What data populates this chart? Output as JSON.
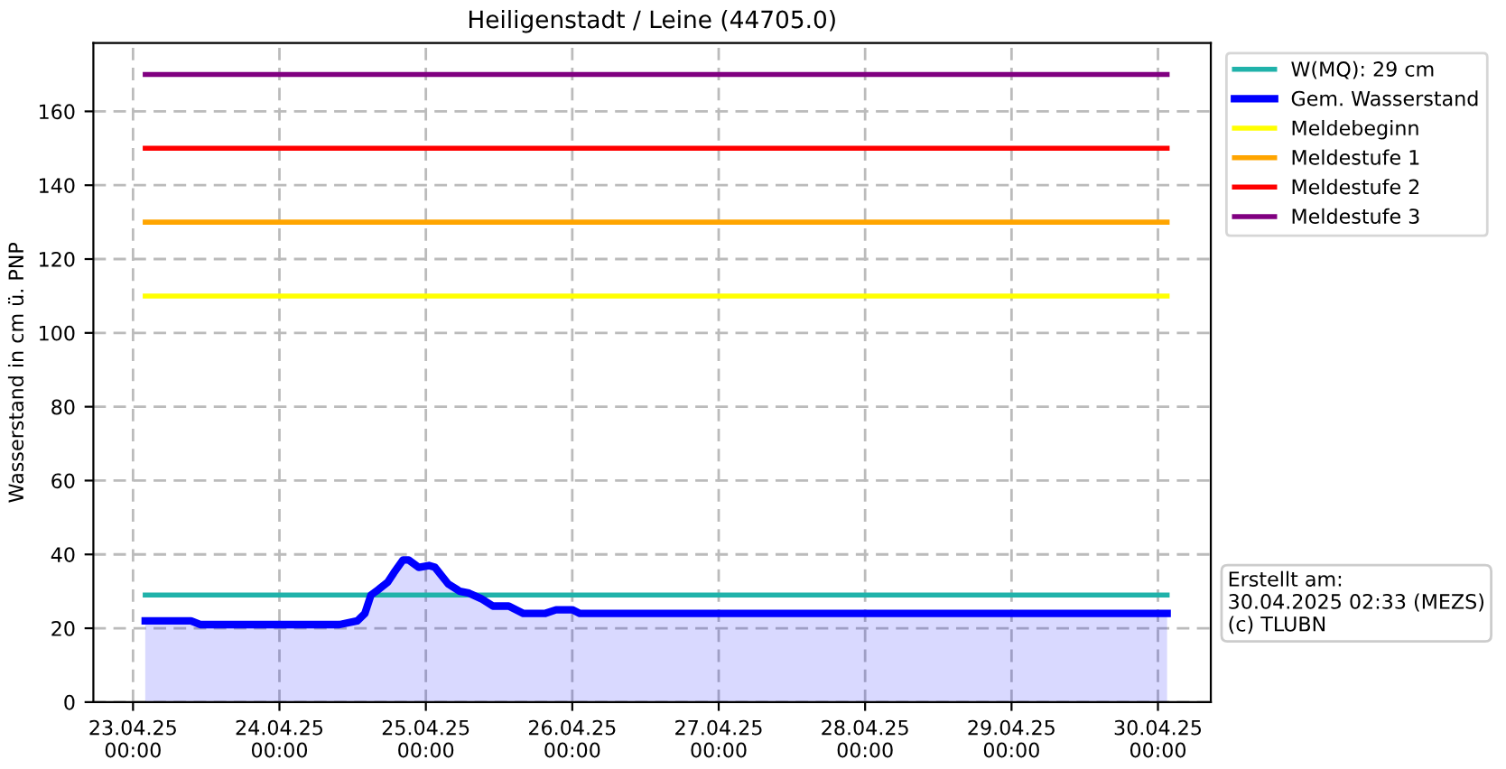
{
  "chart_data": {
    "type": "line",
    "title": "Heiligenstadt / Leine (44705.0)",
    "ylabel": "Wasserstand in cm ü. PNP",
    "series": [
      {
        "name": "W(MQ): 29 cm",
        "color": "#20b2aa",
        "x": [
          "2025-04-23T02:00",
          "2025-04-30T01:30"
        ],
        "values": [
          29,
          29
        ]
      },
      {
        "name": "Gem. Wasserstand",
        "type": "area",
        "color": "#0000ff",
        "x": [
          "2025-04-23T02:00",
          "2025-04-23T09:30",
          "2025-04-23T11:00",
          "2025-04-23T14:00",
          "2025-04-24T09:50",
          "2025-04-24T12:45",
          "2025-04-24T14:00",
          "2025-04-24T15:00",
          "2025-04-24T16:15",
          "2025-04-24T17:45",
          "2025-04-24T18:45",
          "2025-04-24T20:15",
          "2025-04-24T21:10",
          "2025-04-24T22:50",
          "2025-04-25T00:30",
          "2025-04-25T01:30",
          "2025-04-25T03:40",
          "2025-04-25T05:35",
          "2025-04-25T07:05",
          "2025-04-25T09:05",
          "2025-04-25T11:00",
          "2025-04-25T13:35",
          "2025-04-25T16:00",
          "2025-04-25T19:30",
          "2025-04-25T21:20",
          "2025-04-26T00:00",
          "2025-04-26T01:15",
          "2025-04-30T01:30"
        ],
        "values": [
          22,
          22,
          21,
          21,
          21,
          22,
          24,
          29,
          30.5,
          32.5,
          35,
          38.5,
          38.5,
          36.5,
          37,
          36.5,
          32,
          30,
          29.5,
          28,
          26,
          26,
          24,
          24,
          25,
          25,
          24,
          24
        ]
      },
      {
        "name": "Meldebeginn",
        "color": "#ffff00",
        "x": [
          "2025-04-23T02:00",
          "2025-04-30T01:30"
        ],
        "values": [
          110,
          110
        ]
      },
      {
        "name": "Meldestufe 1",
        "color": "#ffa500",
        "x": [
          "2025-04-23T02:00",
          "2025-04-30T01:30"
        ],
        "values": [
          130,
          130
        ]
      },
      {
        "name": "Meldestufe 2",
        "color": "#ff0000",
        "x": [
          "2025-04-23T02:00",
          "2025-04-30T01:30"
        ],
        "values": [
          150,
          150
        ]
      },
      {
        "name": "Meldestufe 3",
        "color": "#800080",
        "x": [
          "2025-04-23T02:00",
          "2025-04-30T01:30"
        ],
        "values": [
          170,
          170
        ]
      }
    ],
    "xlim": [
      "2025-04-22T17:30",
      "2025-04-30T08:40"
    ],
    "xticks": [
      {
        "value": "2025-04-23",
        "label": "23.04.25\n00:00"
      },
      {
        "value": "2025-04-24",
        "label": "24.04.25\n00:00"
      },
      {
        "value": "2025-04-25",
        "label": "25.04.25\n00:00"
      },
      {
        "value": "2025-04-26",
        "label": "26.04.25\n00:00"
      },
      {
        "value": "2025-04-27",
        "label": "27.04.25\n00:00"
      },
      {
        "value": "2025-04-28",
        "label": "28.04.25\n00:00"
      },
      {
        "value": "2025-04-29",
        "label": "29.04.25\n00:00"
      },
      {
        "value": "2025-04-30",
        "label": "30.04.25\n00:00"
      }
    ],
    "ylim": [
      0,
      178.5
    ],
    "yticks": [
      0,
      20,
      40,
      60,
      80,
      100,
      120,
      140,
      160
    ],
    "grid": true,
    "line_style": "solid",
    "legend": "top right",
    "annotations": [
      "Erstellt am:\n30.04.2025 02:33 (MEZS)\n(c) TLUBN"
    ]
  }
}
